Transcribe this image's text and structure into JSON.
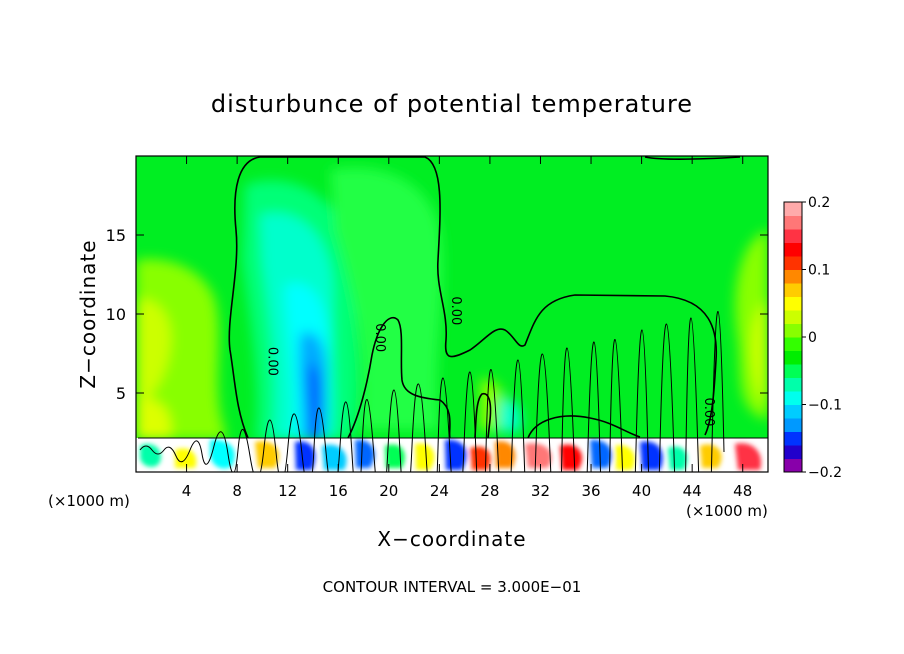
{
  "chart_data": {
    "type": "heatmap",
    "title": "disturbunce of potential temperature",
    "xlabel": "X−coordinate",
    "ylabel": "Z−coordinate",
    "x_unit_left": "(×1000 m)",
    "x_unit_right": "(×1000 m)",
    "x_range": [
      0,
      50
    ],
    "y_range": [
      0,
      20
    ],
    "x_ticks": [
      {
        "value": 4,
        "label": "4"
      },
      {
        "value": 8,
        "label": "8"
      },
      {
        "value": 12,
        "label": "12"
      },
      {
        "value": 16,
        "label": "16"
      },
      {
        "value": 20,
        "label": "20"
      },
      {
        "value": 24,
        "label": "24"
      },
      {
        "value": 28,
        "label": "28"
      },
      {
        "value": 32,
        "label": "32"
      },
      {
        "value": 36,
        "label": "36"
      },
      {
        "value": 40,
        "label": "40"
      },
      {
        "value": 44,
        "label": "44"
      },
      {
        "value": 48,
        "label": "48"
      }
    ],
    "y_ticks": [
      {
        "value": 5,
        "label": "5"
      },
      {
        "value": 10,
        "label": "10"
      },
      {
        "value": 15,
        "label": "15"
      }
    ],
    "colorbar": {
      "range": [
        -0.2,
        0.2
      ],
      "ticks": [
        {
          "value": 0.2,
          "label": "0.2"
        },
        {
          "value": 0.1,
          "label": "0.1"
        },
        {
          "value": 0,
          "label": "0"
        },
        {
          "value": -0.1,
          "label": "−0.1"
        },
        {
          "value": -0.2,
          "label": "−0.2"
        }
      ],
      "colors": [
        "#8800aa",
        "#2200cc",
        "#0033ff",
        "#0099ff",
        "#00ccff",
        "#00ffee",
        "#00ffaa",
        "#00ff55",
        "#00ee00",
        "#33ff00",
        "#88ff00",
        "#ccff00",
        "#ffff00",
        "#ffcc00",
        "#ff8800",
        "#ff3300",
        "#ff0000",
        "#ff3344",
        "#ff7777",
        "#ffaaaa"
      ]
    },
    "contour_labels": [
      {
        "text": "0.00",
        "x": 10.5,
        "y": 7.0
      },
      {
        "text": "0.00",
        "x": 19.0,
        "y": 8.5
      },
      {
        "text": "0.00",
        "x": 25.0,
        "y": 10.2
      },
      {
        "text": "0.00",
        "x": 45.0,
        "y": 3.8
      }
    ],
    "background_color": "#00ee22",
    "footer": "CONTOUR INTERVAL = 3.000E−01"
  }
}
